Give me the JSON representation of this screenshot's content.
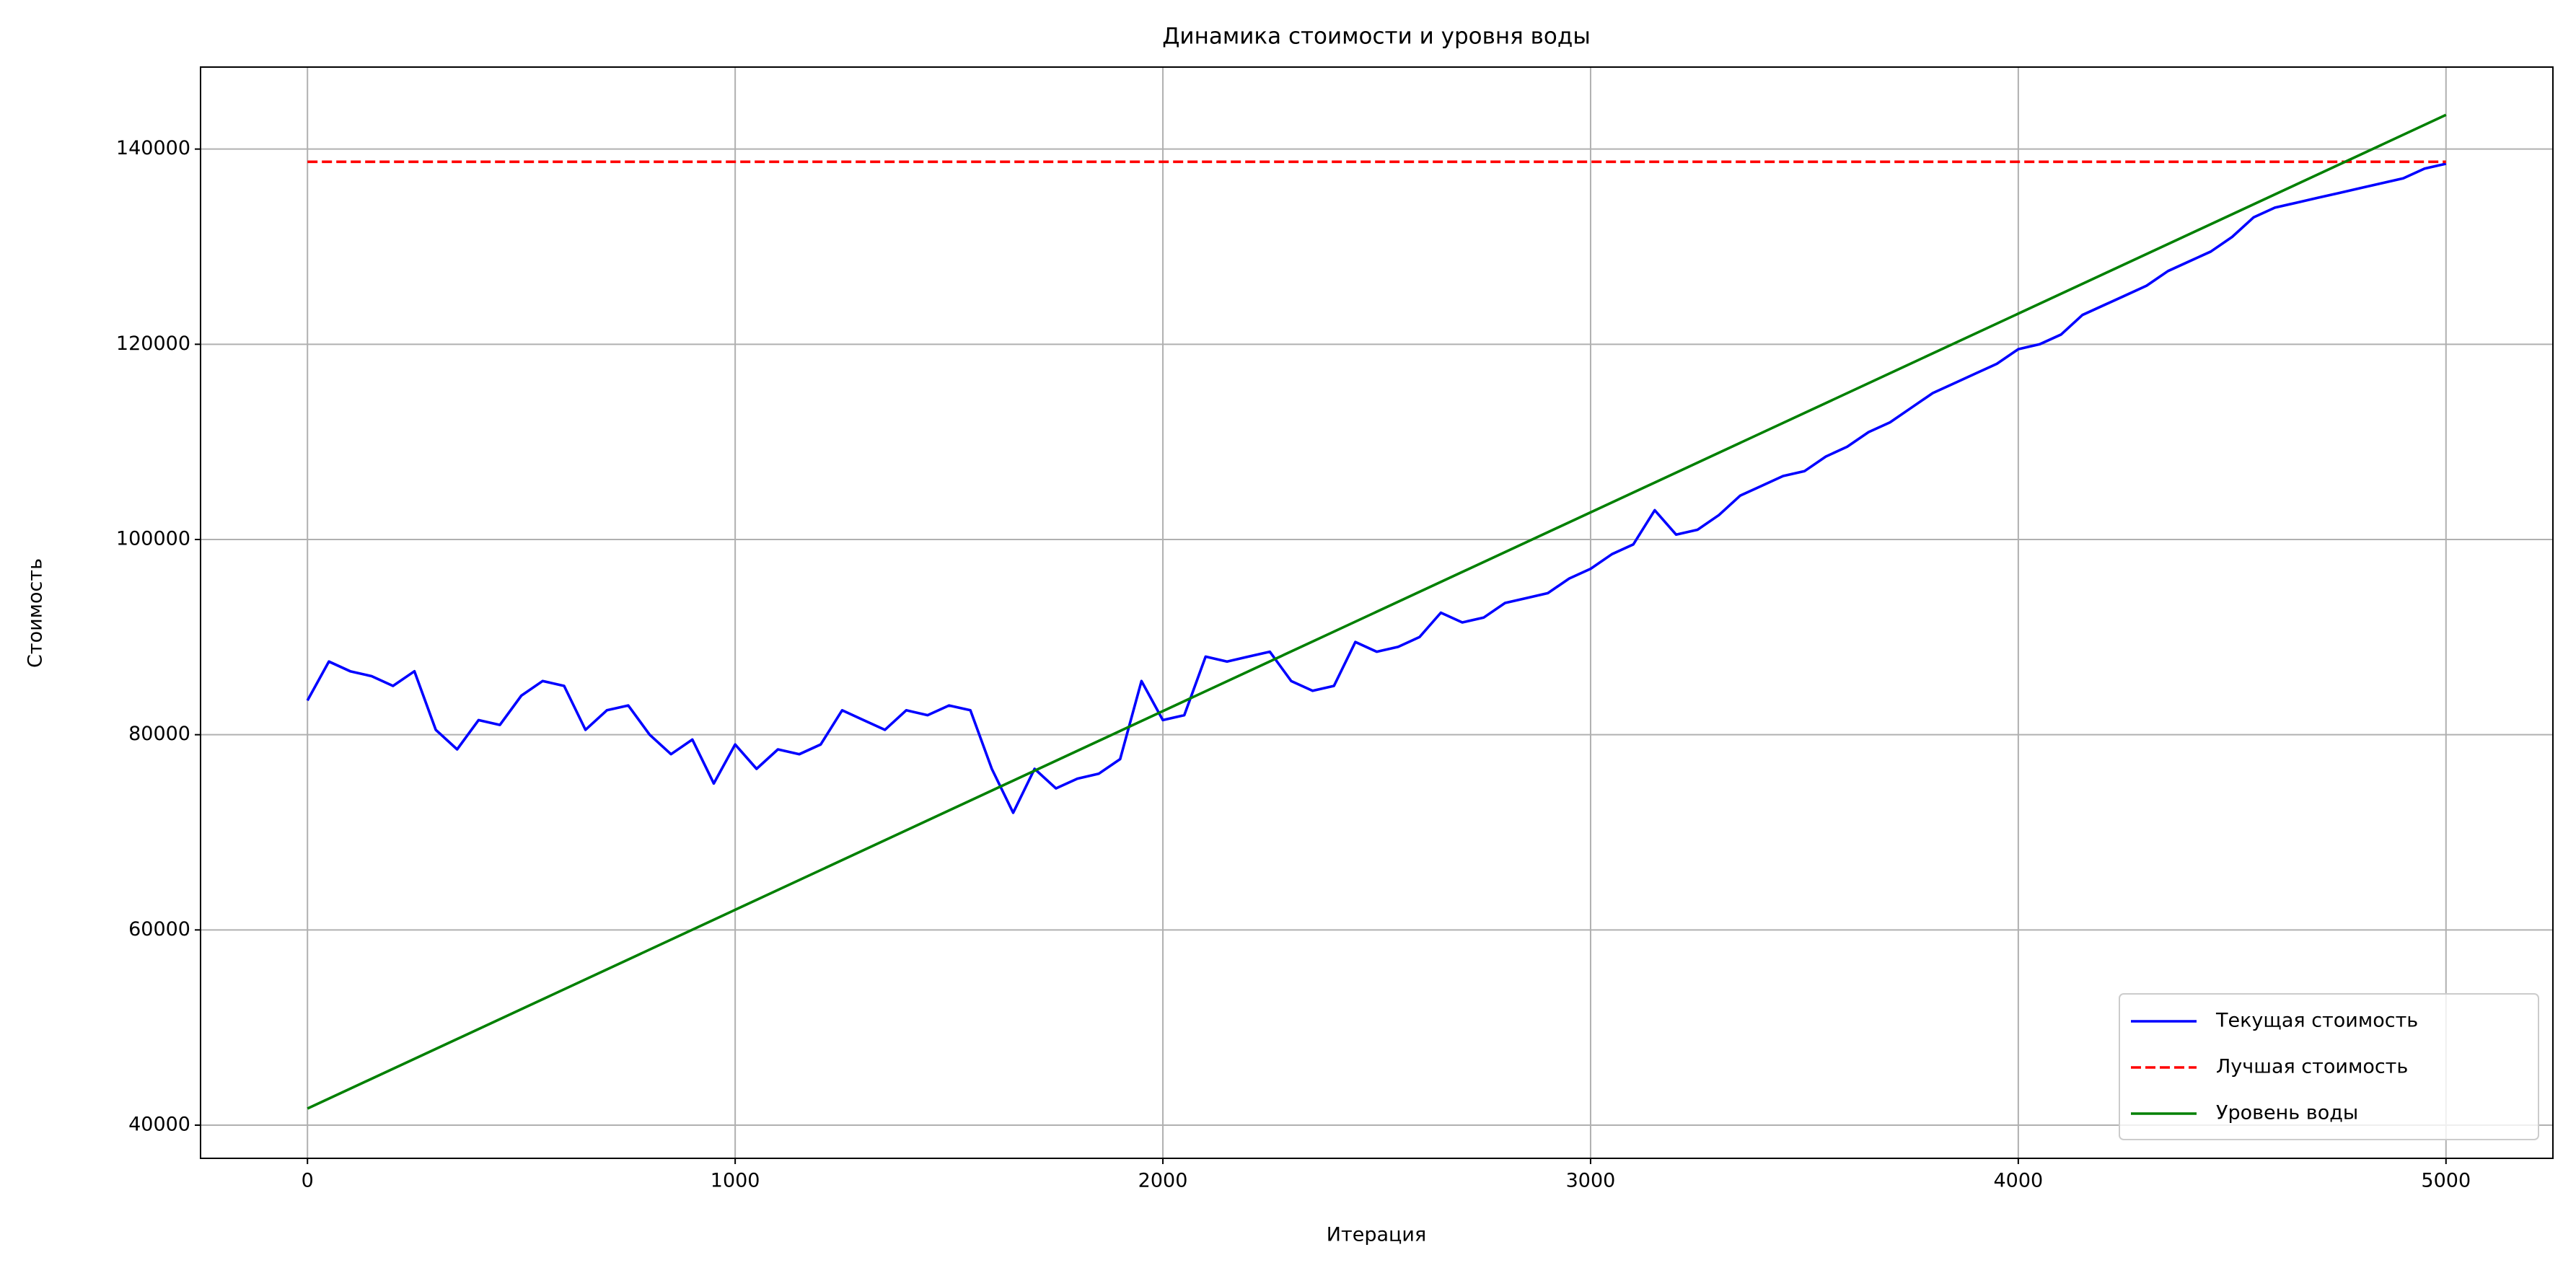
{
  "chart_data": {
    "type": "line",
    "title": "Динамика стоимости и уровня воды",
    "xlabel": "Итерация",
    "ylabel": "Стоимость",
    "xlim": [
      -250,
      5250
    ],
    "ylim": [
      36600,
      148400
    ],
    "xticks": [
      0,
      1000,
      2000,
      3000,
      4000,
      5000
    ],
    "yticks": [
      40000,
      60000,
      80000,
      100000,
      120000,
      140000
    ],
    "grid": true,
    "legend": "lower right",
    "series": [
      {
        "name": "Текущая стоимость",
        "color": "#0000ff",
        "linestyle": "solid",
        "x": [
          0,
          50,
          100,
          150,
          200,
          250,
          300,
          350,
          400,
          450,
          500,
          550,
          600,
          650,
          700,
          750,
          800,
          850,
          900,
          950,
          1000,
          1050,
          1100,
          1150,
          1200,
          1250,
          1300,
          1350,
          1400,
          1450,
          1500,
          1550,
          1600,
          1650,
          1700,
          1750,
          1800,
          1850,
          1900,
          1950,
          2000,
          2050,
          2100,
          2150,
          2200,
          2250,
          2300,
          2350,
          2400,
          2450,
          2500,
          2550,
          2600,
          2650,
          2700,
          2750,
          2800,
          2850,
          2900,
          2950,
          3000,
          3050,
          3100,
          3150,
          3200,
          3250,
          3300,
          3350,
          3400,
          3450,
          3500,
          3550,
          3600,
          3650,
          3700,
          3750,
          3800,
          3850,
          3900,
          3950,
          4000,
          4050,
          4100,
          4150,
          4200,
          4250,
          4300,
          4350,
          4400,
          4450,
          4500,
          4550,
          4600,
          4650,
          4700,
          4750,
          4800,
          4850,
          4900,
          4950,
          5000
        ],
        "values": [
          83500,
          87500,
          86500,
          86000,
          85000,
          86500,
          80500,
          78500,
          81500,
          81000,
          84000,
          85500,
          85000,
          80500,
          82500,
          83000,
          80000,
          78000,
          79500,
          75000,
          79000,
          76500,
          78500,
          78000,
          79000,
          82500,
          81500,
          80500,
          82500,
          82000,
          83000,
          82500,
          76500,
          72000,
          76500,
          74500,
          75500,
          76000,
          77500,
          85500,
          81500,
          82000,
          88000,
          87500,
          88000,
          88500,
          85500,
          84500,
          85000,
          89500,
          88500,
          89000,
          90000,
          92500,
          91500,
          92000,
          93500,
          94000,
          94500,
          96000,
          97000,
          98500,
          99500,
          103000,
          100500,
          101000,
          102500,
          104500,
          105500,
          106500,
          107000,
          108500,
          109500,
          111000,
          112000,
          113500,
          115000,
          116000,
          117000,
          118000,
          119500,
          120000,
          121000,
          123000,
          124000,
          125000,
          126000,
          127500,
          128500,
          129500,
          131000,
          133000,
          134000,
          134500,
          135000,
          135500,
          136000,
          136500,
          137000,
          138000,
          138500
        ]
      },
      {
        "name": "Лучшая стоимость",
        "color": "#ff0000",
        "linestyle": "dashed",
        "x": [
          0,
          5000
        ],
        "values": [
          138700,
          138700
        ]
      },
      {
        "name": "Уровень воды",
        "color": "#008000",
        "linestyle": "solid",
        "x": [
          0,
          5000
        ],
        "values": [
          41700,
          143500
        ]
      }
    ]
  }
}
